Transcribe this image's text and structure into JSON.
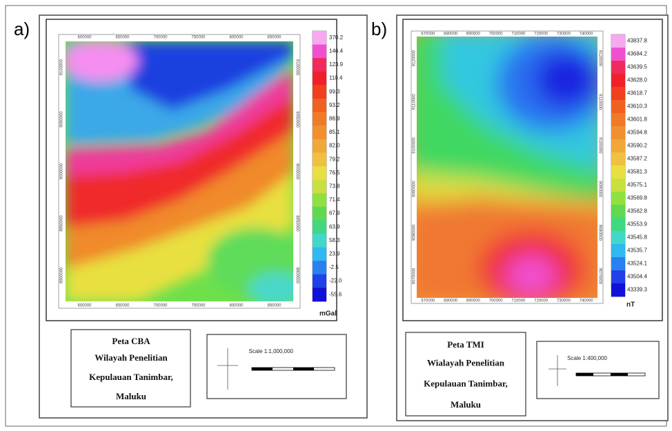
{
  "panels": [
    {
      "label": "a)",
      "colorbar": {
        "labels": [
          "370.2",
          "146.4",
          "123.9",
          "110.4",
          "99.3",
          "93.2",
          "88.9",
          "85.1",
          "82.0",
          "79.2",
          "76.5",
          "73.8",
          "71.4",
          "67.9",
          "63.9",
          "58.3",
          "23.9",
          "-2.5",
          "-22.0",
          "-55.6"
        ],
        "unit": "mGal"
      },
      "x_ticks": [
        "600000",
        "650000",
        "700000",
        "750000",
        "800000",
        "850000"
      ],
      "y_ticks": [
        "9100000",
        "9050000",
        "9000000",
        "8950000",
        "8900000"
      ],
      "info": [
        "Peta CBA",
        "Wilayah Penelitian",
        "Kepulauan Tanimbar,",
        "Maluku"
      ],
      "scale": "Scale 1:1,000,000"
    },
    {
      "label": "b)",
      "colorbar": {
        "labels": [
          "43837.8",
          "43684.2",
          "43639.5",
          "43628.0",
          "43618.7",
          "43610.3",
          "43601.8",
          "43594.8",
          "43590.2",
          "43587.2",
          "43581.3",
          "43575.1",
          "43569.8",
          "43562.8",
          "43553.9",
          "43545.8",
          "43535.7",
          "43524.1",
          "43504.4",
          "43339.3"
        ],
        "unit": "nT"
      },
      "x_ticks": [
        "670000",
        "680000",
        "690000",
        "700000",
        "710000",
        "720000",
        "730000",
        "740000"
      ],
      "y_ticks": [
        "9120000",
        "9110000",
        "9100000",
        "9090000",
        "9080000",
        "9070000"
      ],
      "info": [
        "Peta TMI",
        "Wialayah Penelitian",
        "Kepulauan Tanimbar,",
        "Maluku"
      ],
      "scale": "Scale 1:400,000"
    }
  ]
}
